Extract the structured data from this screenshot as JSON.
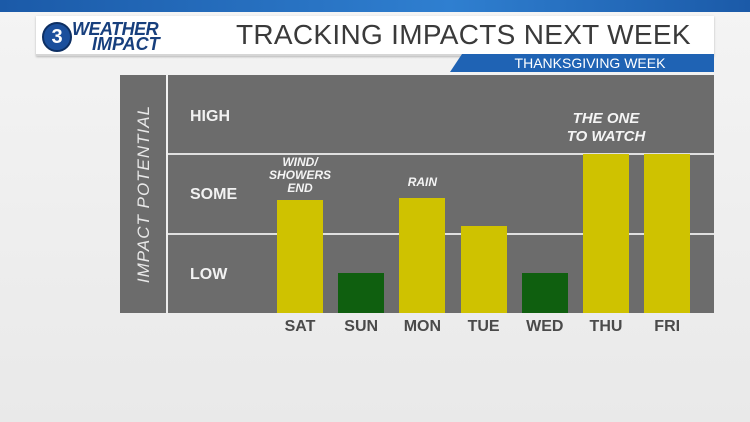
{
  "header": {
    "logo_number": "3",
    "logo_line1": "WEATHER",
    "logo_line2": "IMPACT",
    "title": "TRACKING IMPACTS NEXT WEEK",
    "subtitle": "THANKSGIVING WEEK"
  },
  "colors": {
    "topbar": "#2f7fd0",
    "header_bg": "#ffffff",
    "subtitle_bar": "#1f63b4",
    "plot_bg": "#6c6c6c",
    "yellow": "#cfc200",
    "green": "#0f5f0f"
  },
  "chart_data": {
    "type": "bar",
    "ylabel": "IMPACT POTENTIAL",
    "levels": [
      "LOW",
      "SOME",
      "HIGH"
    ],
    "ylim": [
      0,
      3
    ],
    "categories": [
      "SAT",
      "SUN",
      "MON",
      "TUE",
      "WED",
      "THU",
      "FRI"
    ],
    "values": [
      1.42,
      0.5,
      1.45,
      1.1,
      0.5,
      2.0,
      2.0
    ],
    "bar_colors": [
      "yellow",
      "green",
      "yellow",
      "yellow",
      "green",
      "yellow",
      "yellow"
    ],
    "annotations": [
      {
        "category": "SAT",
        "lines": [
          "WIND/",
          "SHOWERS",
          "END"
        ]
      },
      {
        "category": "MON",
        "lines": [
          "RAIN"
        ]
      },
      {
        "category": "THU",
        "lines": [
          "THE ONE",
          "TO WATCH"
        ]
      }
    ]
  }
}
